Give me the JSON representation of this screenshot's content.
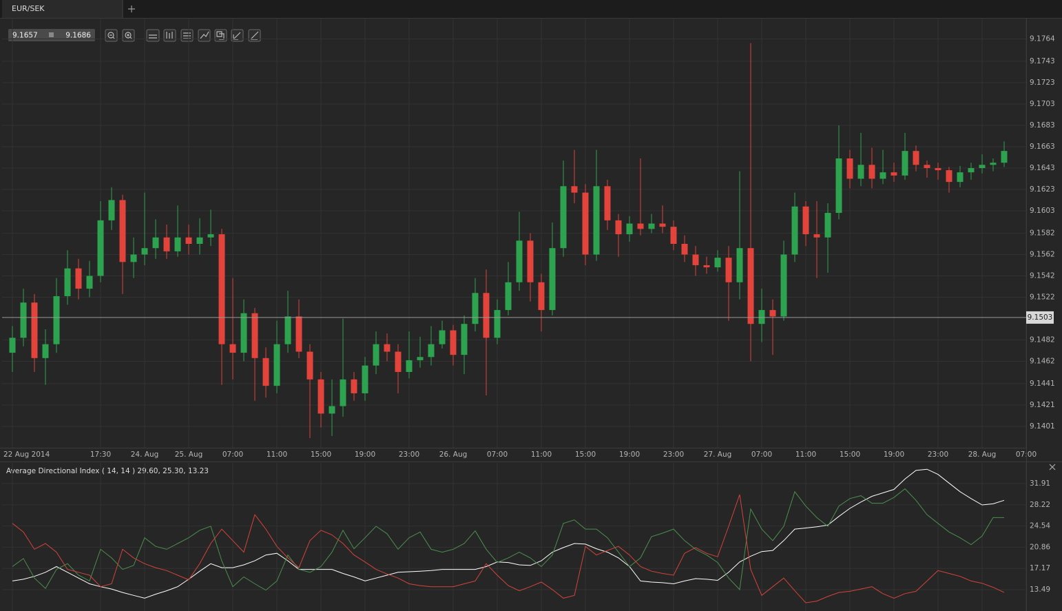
{
  "header": {
    "tab": "EUR/SEK",
    "bid": 9.1657,
    "ask": 9.1686
  },
  "chart_data": [
    {
      "type": "candlestick",
      "categories": [
        "22 Aug 2014",
        null,
        null,
        null,
        null,
        null,
        null,
        null,
        "17:30",
        null,
        null,
        null,
        "24. Aug",
        null,
        null,
        null,
        "25. Aug",
        null,
        null,
        null,
        "07:00",
        null,
        null,
        null,
        "11:00",
        null,
        null,
        null,
        "15:00",
        null,
        null,
        null,
        "19:00",
        null,
        null,
        null,
        "23:00",
        null,
        null,
        null,
        "26. Aug",
        null,
        null,
        null,
        "07:00",
        null,
        null,
        null,
        "11:00",
        null,
        null,
        null,
        "15:00",
        null,
        null,
        null,
        "19:00",
        null,
        null,
        null,
        "23:00",
        null,
        null,
        null,
        "27. Aug",
        null,
        null,
        null,
        "07:00",
        null,
        null,
        null,
        "11:00",
        null,
        null,
        null,
        "15:00",
        null,
        null,
        null,
        "19:00",
        null,
        null,
        null,
        "23:00",
        null,
        null,
        null,
        "28. Aug",
        null,
        null,
        null,
        "07:00"
      ],
      "open": [
        9.147,
        9.1484,
        9.1517,
        9.1465,
        9.1478,
        9.1523,
        9.1549,
        9.153,
        9.1542,
        9.1594,
        9.1613,
        9.1555,
        9.1562,
        9.1568,
        9.1578,
        9.1565,
        9.1578,
        9.1572,
        9.1578,
        9.1581,
        9.1478,
        9.147,
        9.1507,
        9.1465,
        9.1439,
        9.1478,
        9.1504,
        9.1471,
        9.1445,
        9.1413,
        9.142,
        9.1445,
        9.1432,
        9.1458,
        9.1478,
        9.1471,
        9.1452,
        9.1463,
        9.1466,
        9.1478,
        9.1491,
        9.1468,
        9.1497,
        9.1526,
        9.1484,
        9.151,
        9.1536,
        9.1575,
        9.1536,
        9.151,
        9.1568,
        9.1626,
        9.162,
        9.1562,
        9.1626,
        9.1594,
        9.1581,
        9.1591,
        9.1586,
        9.1591,
        9.1588,
        9.1572,
        9.1562,
        9.1552,
        9.155,
        9.1559,
        9.1536,
        9.1568,
        9.1497,
        9.151,
        9.1504,
        9.1562,
        9.1607,
        9.1581,
        9.1578,
        9.1601,
        9.1652,
        9.1633,
        9.1646,
        9.1633,
        9.1639,
        9.1636,
        9.1659,
        9.1646,
        9.1643,
        9.1641,
        9.163,
        9.1639,
        9.1643,
        9.1646,
        9.1648,
        null,
        null
      ],
      "high": [
        9.1495,
        9.153,
        9.1525,
        9.1492,
        9.154,
        9.1566,
        9.1558,
        9.1556,
        9.1612,
        9.1625,
        9.1618,
        9.1578,
        9.162,
        9.1595,
        9.159,
        9.1608,
        9.159,
        9.1596,
        9.1604,
        9.1586,
        9.154,
        9.152,
        9.1512,
        9.1475,
        9.15,
        9.1528,
        9.152,
        9.1478,
        9.1452,
        9.1445,
        9.1502,
        9.1452,
        9.1466,
        9.149,
        9.1488,
        9.1478,
        9.149,
        9.1485,
        9.1495,
        9.15,
        9.1496,
        9.1505,
        9.154,
        9.1548,
        9.152,
        9.1555,
        9.1602,
        9.1582,
        9.1544,
        9.1592,
        9.165,
        9.166,
        9.1628,
        9.166,
        9.1632,
        9.16,
        9.1598,
        9.1652,
        9.16,
        9.1608,
        9.1594,
        9.158,
        9.157,
        9.156,
        9.1566,
        9.157,
        9.164,
        9.176,
        9.153,
        9.152,
        9.1575,
        9.162,
        9.1612,
        9.1612,
        9.161,
        9.1683,
        9.166,
        9.1676,
        9.1662,
        9.166,
        9.1648,
        9.1676,
        9.1664,
        9.165,
        9.1648,
        9.1644,
        9.1645,
        9.1648,
        9.1656,
        9.1652,
        9.1668,
        null,
        null
      ],
      "low": [
        9.1452,
        9.1476,
        9.1452,
        9.144,
        9.147,
        9.1515,
        9.152,
        9.1522,
        9.1536,
        9.1585,
        9.1525,
        9.154,
        9.1552,
        9.1558,
        9.1558,
        9.156,
        9.1562,
        9.1562,
        9.157,
        9.144,
        9.1445,
        9.1462,
        9.1425,
        9.1428,
        9.1432,
        9.147,
        9.1465,
        9.139,
        9.14,
        9.1392,
        9.141,
        9.1425,
        9.1425,
        9.145,
        9.1462,
        9.1432,
        9.1446,
        9.1456,
        9.1458,
        9.1474,
        9.1458,
        9.145,
        9.149,
        9.143,
        9.1478,
        9.1505,
        9.1528,
        9.1518,
        9.149,
        9.1505,
        9.156,
        9.161,
        9.1552,
        9.1556,
        9.1585,
        9.156,
        9.1574,
        9.158,
        9.1582,
        9.1582,
        9.1566,
        9.1555,
        9.1542,
        9.1544,
        9.1546,
        9.15,
        9.152,
        9.1462,
        9.148,
        9.1468,
        9.15,
        9.1555,
        9.157,
        9.154,
        9.1545,
        9.1595,
        9.1624,
        9.1626,
        9.1624,
        9.1628,
        9.163,
        9.1632,
        9.164,
        9.1634,
        9.1632,
        9.162,
        9.1625,
        9.1632,
        9.1638,
        9.164,
        9.1644,
        null,
        null
      ],
      "close": [
        9.1484,
        9.1517,
        9.1465,
        9.1478,
        9.1523,
        9.1549,
        9.153,
        9.1542,
        9.1594,
        9.1613,
        9.1555,
        9.1562,
        9.1568,
        9.1578,
        9.1565,
        9.1578,
        9.1572,
        9.1578,
        9.1581,
        9.1478,
        9.147,
        9.1507,
        9.1465,
        9.1439,
        9.1478,
        9.1504,
        9.1471,
        9.1445,
        9.1413,
        9.142,
        9.1445,
        9.1432,
        9.1458,
        9.1478,
        9.1471,
        9.1452,
        9.1463,
        9.1466,
        9.1478,
        9.1491,
        9.1468,
        9.1497,
        9.1526,
        9.1484,
        9.151,
        9.1536,
        9.1575,
        9.1536,
        9.151,
        9.1568,
        9.1626,
        9.162,
        9.1562,
        9.1626,
        9.1594,
        9.1581,
        9.1591,
        9.1586,
        9.1591,
        9.1588,
        9.1572,
        9.1562,
        9.1552,
        9.155,
        9.1559,
        9.1536,
        9.1568,
        9.1497,
        9.151,
        9.1504,
        9.1562,
        9.1607,
        9.1581,
        9.1578,
        9.1601,
        9.1652,
        9.1633,
        9.1646,
        9.1633,
        9.1639,
        9.1636,
        9.1659,
        9.1646,
        9.1643,
        9.1641,
        9.163,
        9.1639,
        9.1643,
        9.1646,
        9.1648,
        9.1659,
        null,
        null
      ],
      "up_color": "#2ea34f",
      "down_color": "#e2433b",
      "ylim": [
        9.1381,
        9.1783
      ],
      "yticks": [
        9.1401,
        9.1421,
        9.1441,
        9.1462,
        9.1482,
        9.1522,
        9.1542,
        9.1562,
        9.1582,
        9.1603,
        9.1623,
        9.1643,
        9.1663,
        9.1683,
        9.1703,
        9.1723,
        9.1743,
        9.1764
      ],
      "price_line": 9.1503,
      "grid": true
    },
    {
      "type": "line",
      "title": "Average Directional Index ( 14, 14 ) 29.60, 25.30, 13.23",
      "series": [
        {
          "color": "#ffffff",
          "values": [
            15,
            15.3,
            15.8,
            16.5,
            17.5,
            16.5,
            15.5,
            14.5,
            14,
            13.6,
            13,
            12.5,
            12,
            12.7,
            13.3,
            14,
            15.3,
            16.7,
            18,
            17.3,
            17.3,
            17.8,
            18.5,
            19.5,
            19.8,
            18.5,
            17,
            17,
            17,
            17,
            16.3,
            15.7,
            15,
            15.5,
            16,
            16.5,
            16.6,
            16.7,
            16.8,
            17,
            17,
            17,
            17,
            17.5,
            18.3,
            18.2,
            17.8,
            17.7,
            18.5,
            20,
            20.8,
            21.5,
            21.4,
            20.6,
            20,
            19,
            17.5,
            15,
            14.8,
            14.7,
            14.5,
            15,
            15.4,
            15.3,
            15.1,
            16.5,
            18.3,
            19.3,
            20.1,
            20.3,
            22,
            24,
            24.2,
            24.4,
            24.7,
            26.2,
            27.6,
            28.7,
            29.7,
            30.3,
            30.9,
            32.7,
            34.2,
            34.4,
            33.5,
            32,
            30.5,
            29.3,
            28.2,
            28.4,
            29,
            null,
            null
          ]
        },
        {
          "color": "#4b8f4e",
          "values": [
            17.5,
            18.9,
            15.5,
            13.7,
            17,
            18,
            16,
            15,
            20.5,
            19,
            17,
            17.7,
            22.5,
            21,
            20.5,
            21.5,
            22.5,
            23.8,
            24.5,
            18.5,
            14,
            15.7,
            14.5,
            13.4,
            15,
            19.5,
            17,
            16.5,
            17.5,
            20,
            23.8,
            20.6,
            22.5,
            24.5,
            23.2,
            20.5,
            22.5,
            23.5,
            20.5,
            20,
            20.5,
            21.5,
            23.7,
            20.5,
            18.2,
            19,
            20,
            19,
            17.5,
            19.5,
            25,
            25.6,
            24,
            24,
            22.5,
            20,
            17.5,
            19,
            22.7,
            23.3,
            24,
            22,
            20.5,
            19.5,
            18.2,
            15.5,
            13.5,
            27.5,
            24,
            22,
            24.5,
            30.5,
            28,
            26,
            24.5,
            28,
            29.3,
            29.8,
            28.5,
            28.5,
            29.5,
            31,
            29,
            26.5,
            25,
            23.5,
            22.5,
            21.3,
            22.8,
            26,
            26,
            null,
            null
          ]
        },
        {
          "color": "#d4443a",
          "values": [
            25,
            23.5,
            20.5,
            21.5,
            20,
            17,
            16.5,
            16,
            14,
            14.5,
            20.5,
            19,
            18,
            17.3,
            16.8,
            16,
            15.2,
            18,
            21.5,
            24,
            22,
            20,
            26.5,
            24,
            21,
            19,
            17.3,
            22,
            23.8,
            23,
            21.5,
            19.5,
            18.3,
            17,
            16.2,
            15.5,
            14.5,
            14.2,
            14,
            14,
            14,
            14.5,
            15,
            18,
            16,
            14.2,
            13.3,
            14,
            14.8,
            13.5,
            12,
            12.5,
            21,
            19.5,
            20.3,
            21,
            19.5,
            17.5,
            16.7,
            16.3,
            16,
            19.8,
            20.8,
            19.8,
            19.2,
            24.5,
            30,
            17,
            12.5,
            14,
            15.5,
            13.3,
            11.2,
            11.5,
            12.3,
            13,
            13.2,
            13.6,
            14,
            12.8,
            12,
            12.8,
            13.2,
            15,
            16.8,
            16.3,
            15.8,
            15,
            14.6,
            13.9,
            13,
            null,
            null
          ]
        }
      ],
      "ylim": [
        9.78,
        35.5
      ],
      "yticks": [
        13.49,
        17.17,
        20.86,
        24.54,
        28.22,
        31.91
      ],
      "grid": true
    }
  ]
}
